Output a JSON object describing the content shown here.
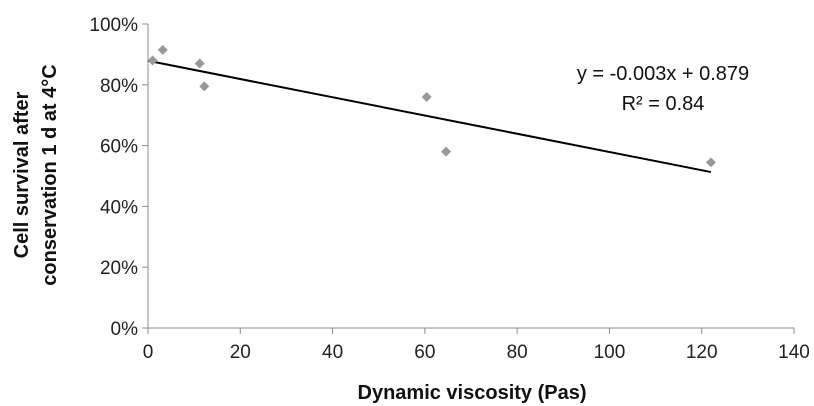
{
  "chart_data": {
    "type": "scatter",
    "xlabel": "Dynamic viscosity (Pas)",
    "ylabel_lines": [
      "Cell survival after",
      "conservation 1 d at 4°C"
    ],
    "xlim": [
      0,
      140
    ],
    "ylim": [
      0,
      1
    ],
    "x_ticks": [
      0,
      20,
      40,
      60,
      80,
      100,
      120,
      140
    ],
    "x_tick_labels": [
      "0",
      "20",
      "40",
      "60",
      "80",
      "100",
      "120",
      "140"
    ],
    "y_ticks": [
      0,
      0.2,
      0.4,
      0.6,
      0.8,
      1.0
    ],
    "y_tick_labels": [
      "0%",
      "20%",
      "40%",
      "60%",
      "80%",
      "100%"
    ],
    "grid": false,
    "series": [
      {
        "x": [
          1,
          3.2,
          11.2,
          12.2,
          60.4,
          64.6,
          122
        ],
        "y": [
          0.88,
          0.915,
          0.87,
          0.795,
          0.76,
          0.58,
          0.545
        ],
        "color": "#999999",
        "marker": "diamond"
      }
    ],
    "trendline": {
      "slope": -0.003,
      "intercept": 0.879,
      "x_range": [
        0,
        122
      ],
      "color": "#000000"
    },
    "annotations": {
      "equation": "y = -0.003x + 0.879",
      "r_squared": "R² = 0.84"
    }
  }
}
